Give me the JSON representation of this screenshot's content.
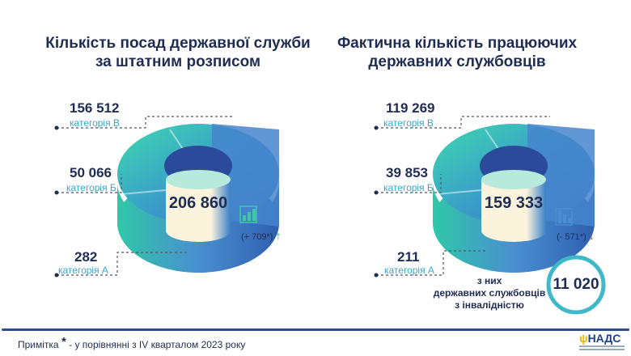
{
  "left": {
    "title_line1": "Кількість посад державної служби",
    "title_line2": "за штатним розписом",
    "total": "206 860",
    "change": "(+ 709*)",
    "change_direction": "up",
    "categories": [
      {
        "value": "156 512",
        "label": "категорія В"
      },
      {
        "value": "50 066",
        "label": "категорія Б"
      },
      {
        "value": "282",
        "label": "категорія А"
      }
    ]
  },
  "right": {
    "title_line1": "Фактична кількість працюючих",
    "title_line2": "державних службовців",
    "total": "159 333",
    "change": "(- 571*)",
    "change_direction": "down",
    "categories": [
      {
        "value": "119 269",
        "label": "категорія В"
      },
      {
        "value": "39 853",
        "label": "категорія Б"
      },
      {
        "value": "211",
        "label": "категорія А"
      }
    ],
    "disability_line1": "з них",
    "disability_line2": "державних службовців",
    "disability_line3": "з інвалідністю",
    "disability_count": "11 020"
  },
  "footer": {
    "note_prefix": "Примітка",
    "note_star": "*",
    "note_text": "- у порівнянні з IV кварталом 2023 року",
    "logo_text": "НАДС"
  },
  "colors": {
    "navy": "#1f2d52",
    "teal": "#3fd1b0",
    "blue": "#3f7fc6",
    "up": "#22b04b",
    "down": "#e03030",
    "rule": "#2d4a8a"
  }
}
